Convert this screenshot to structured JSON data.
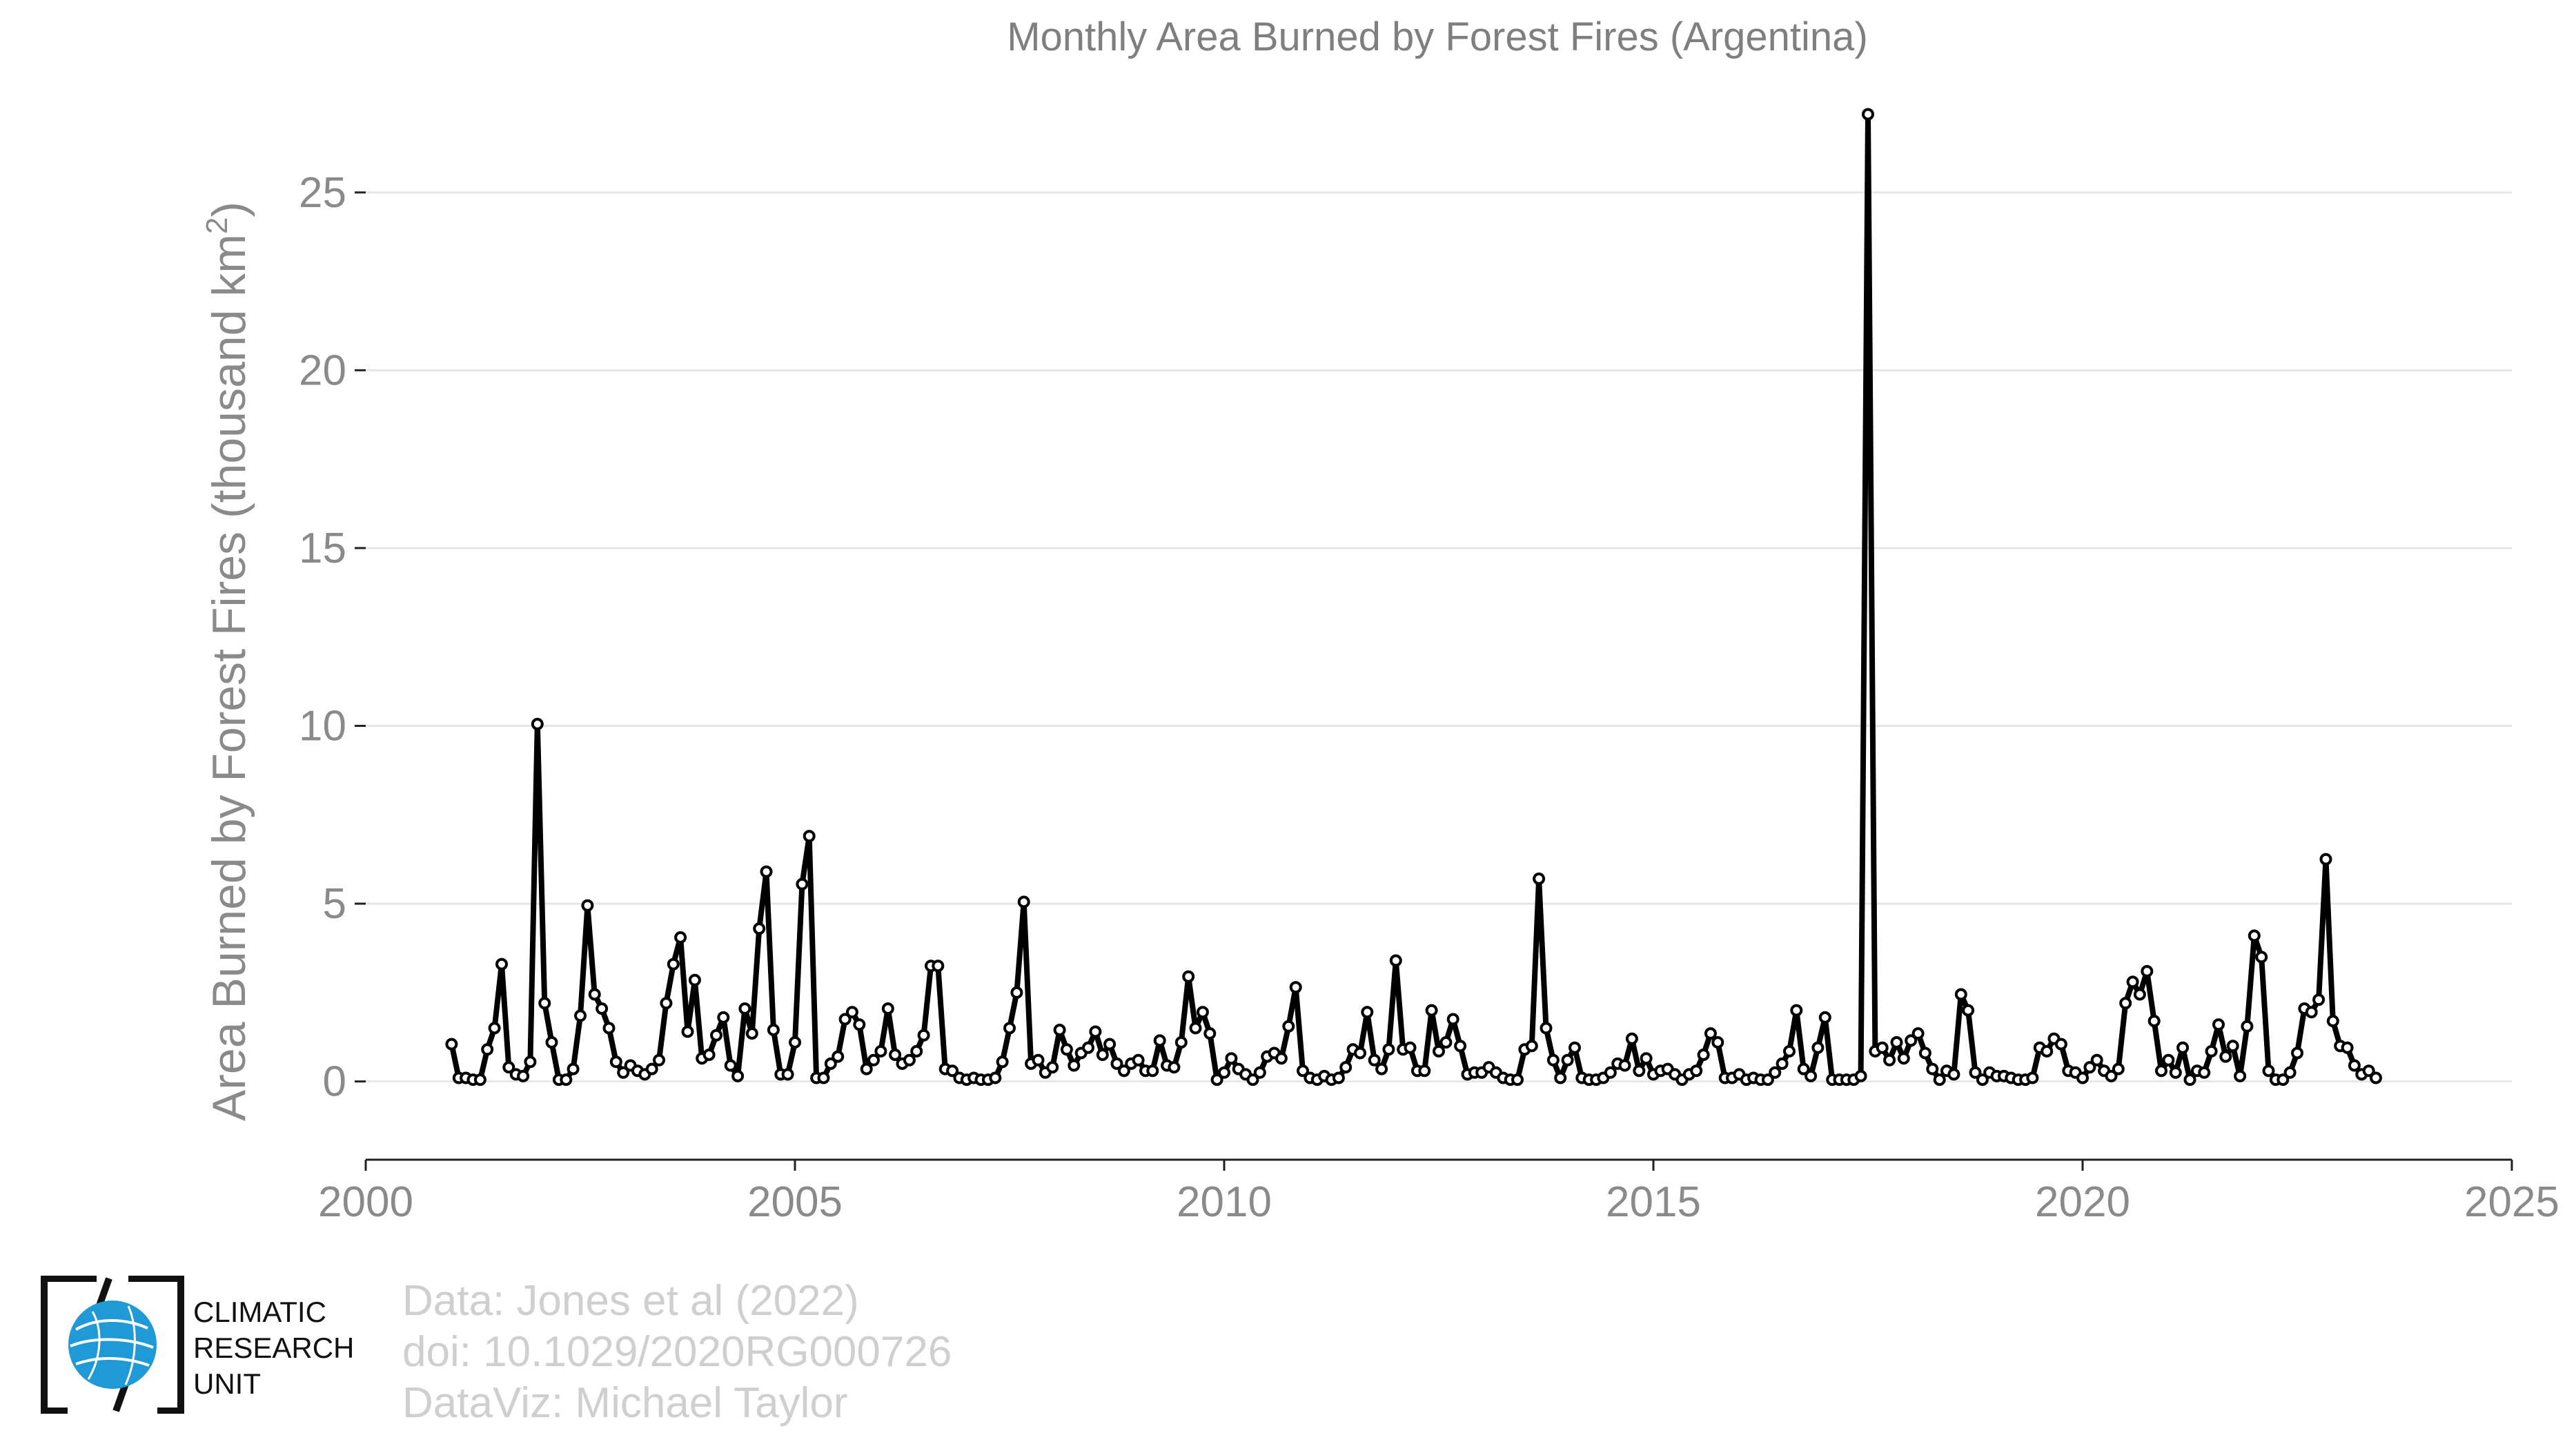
{
  "chart_data": {
    "type": "line",
    "title": "Monthly Area Burned by Forest Fires (Argentina)",
    "ylabel": "Area Burned by Forest Fires (thousand km",
    "ylabel_superscript": "2",
    "ylabel_close": ")",
    "xlabel": "",
    "xlim": [
      2000,
      2025
    ],
    "ylim": [
      -2.2,
      27.5
    ],
    "xticks": [
      2000,
      2005,
      2010,
      2015,
      2020,
      2025
    ],
    "xtick_labels": [
      "2000",
      "2005",
      "2010",
      "2015",
      "2020",
      "2025"
    ],
    "yticks": [
      0,
      5,
      10,
      15,
      20,
      25
    ],
    "ytick_labels": [
      "0",
      "5",
      "10",
      "15",
      "20",
      "25"
    ],
    "grid": "horizontal",
    "series": [
      {
        "color": "#000000",
        "start_year": 2001,
        "start_month": 1,
        "values": [
          1.05,
          0.1,
          0.1,
          0.05,
          0.05,
          0.9,
          1.5,
          3.3,
          0.4,
          0.2,
          0.15,
          0.55,
          10.05,
          2.2,
          1.1,
          0.05,
          0.05,
          0.35,
          1.85,
          4.95,
          2.45,
          2.05,
          1.5,
          0.55,
          0.25,
          0.45,
          0.3,
          0.2,
          0.35,
          0.6,
          2.2,
          3.3,
          4.05,
          1.4,
          2.85,
          0.65,
          0.75,
          1.3,
          1.8,
          0.45,
          0.15,
          2.05,
          1.35,
          4.3,
          5.9,
          1.45,
          0.2,
          0.2,
          1.1,
          5.55,
          6.9,
          0.1,
          0.1,
          0.5,
          0.7,
          1.75,
          1.95,
          1.6,
          0.35,
          0.6,
          0.85,
          2.05,
          0.75,
          0.5,
          0.6,
          0.85,
          1.3,
          3.25,
          3.25,
          0.35,
          0.3,
          0.1,
          0.05,
          0.1,
          0.05,
          0.05,
          0.1,
          0.55,
          1.5,
          2.5,
          5.05,
          0.5,
          0.6,
          0.25,
          0.4,
          1.45,
          0.9,
          0.45,
          0.8,
          0.95,
          1.4,
          0.75,
          1.05,
          0.5,
          0.3,
          0.5,
          0.6,
          0.3,
          0.3,
          1.15,
          0.45,
          0.4,
          1.1,
          2.95,
          1.5,
          1.95,
          1.35,
          0.05,
          0.25,
          0.65,
          0.35,
          0.2,
          0.05,
          0.25,
          0.7,
          0.8,
          0.65,
          1.55,
          2.65,
          0.3,
          0.1,
          0.05,
          0.15,
          0.05,
          0.1,
          0.4,
          0.9,
          0.8,
          1.95,
          0.6,
          0.35,
          0.9,
          3.4,
          0.9,
          0.95,
          0.3,
          0.3,
          2.0,
          0.85,
          1.1,
          1.75,
          1.0,
          0.2,
          0.25,
          0.25,
          0.4,
          0.25,
          0.1,
          0.05,
          0.05,
          0.9,
          1.0,
          5.7,
          1.5,
          0.6,
          0.1,
          0.6,
          0.95,
          0.1,
          0.05,
          0.05,
          0.1,
          0.25,
          0.5,
          0.45,
          1.2,
          0.3,
          0.65,
          0.2,
          0.3,
          0.35,
          0.2,
          0.05,
          0.2,
          0.3,
          0.75,
          1.35,
          1.1,
          0.1,
          0.1,
          0.2,
          0.05,
          0.1,
          0.05,
          0.05,
          0.25,
          0.5,
          0.85,
          2.0,
          0.35,
          0.15,
          0.95,
          1.8,
          0.05,
          0.05,
          0.05,
          0.05,
          0.15,
          27.2,
          0.85,
          0.95,
          0.6,
          1.1,
          0.65,
          1.15,
          1.35,
          0.8,
          0.35,
          0.05,
          0.3,
          0.2,
          2.45,
          2.0,
          0.25,
          0.05,
          0.25,
          0.15,
          0.15,
          0.1,
          0.05,
          0.05,
          0.1,
          0.95,
          0.85,
          1.2,
          1.05,
          0.3,
          0.25,
          0.1,
          0.4,
          0.6,
          0.3,
          0.15,
          0.35,
          2.2,
          2.8,
          2.45,
          3.1,
          1.7,
          0.3,
          0.6,
          0.25,
          0.95,
          0.05,
          0.3,
          0.25,
          0.85,
          1.6,
          0.7,
          1.0,
          0.15,
          1.55,
          4.1,
          3.5,
          0.3,
          0.05,
          0.05,
          0.25,
          0.8,
          2.05,
          1.95,
          2.3,
          6.25,
          1.7,
          1.0,
          0.95,
          0.45,
          0.2,
          0.3,
          0.1
        ]
      }
    ]
  },
  "credits": {
    "line1": "Data: Jones et al (2022)",
    "line2": "doi: 10.1029/2020RG000726",
    "line3": "DataViz: Michael Taylor"
  },
  "logo": {
    "line1": "CLIMATIC",
    "line2": "RESEARCH",
    "line3": "UNIT",
    "globe_color": "#1f9ad6"
  }
}
